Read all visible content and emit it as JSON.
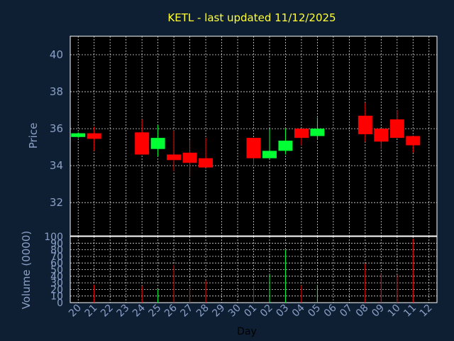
{
  "chart_data": [
    {
      "type": "candlestick",
      "title": "KETL - last updated 11/12/2025",
      "ylabel": "Price",
      "ylim": [
        30.2,
        41.0
      ],
      "yticks": [
        "32",
        "34",
        "36",
        "38",
        "40"
      ],
      "up_color": "#00ff33",
      "down_color": "#ff0000",
      "categories": [
        "20",
        "21",
        "22",
        "23",
        "24",
        "25",
        "26",
        "27",
        "28",
        "29",
        "30",
        "01",
        "02",
        "03",
        "04",
        "05",
        "06",
        "07",
        "08",
        "09",
        "10",
        "11",
        "12"
      ],
      "candles": [
        {
          "day": "20",
          "open": 35.55,
          "close": 35.75,
          "high": 35.8,
          "low": 35.5
        },
        {
          "day": "21",
          "open": 35.75,
          "close": 35.45,
          "high": 36.1,
          "low": 34.8
        },
        {
          "day": "24",
          "open": 35.8,
          "close": 34.6,
          "high": 36.5,
          "low": 34.6
        },
        {
          "day": "25",
          "open": 34.9,
          "close": 35.5,
          "high": 36.2,
          "low": 34.5
        },
        {
          "day": "26",
          "open": 34.6,
          "close": 34.3,
          "high": 35.9,
          "low": 33.7
        },
        {
          "day": "27",
          "open": 34.7,
          "close": 34.15,
          "high": 35.4,
          "low": 33.4
        },
        {
          "day": "28",
          "open": 34.4,
          "close": 33.9,
          "high": 35.5,
          "low": 33.9
        },
        {
          "day": "01",
          "open": 35.5,
          "close": 34.4,
          "high": 35.5,
          "low": 34.0
        },
        {
          "day": "02",
          "open": 34.4,
          "close": 34.8,
          "high": 36.0,
          "low": 34.4
        },
        {
          "day": "03",
          "open": 34.8,
          "close": 35.35,
          "high": 36.0,
          "low": 34.6
        },
        {
          "day": "04",
          "open": 36.0,
          "close": 35.5,
          "high": 36.0,
          "low": 35.1
        },
        {
          "day": "05",
          "open": 35.6,
          "close": 36.0,
          "high": 36.6,
          "low": 35.4
        },
        {
          "day": "08",
          "open": 36.7,
          "close": 35.7,
          "high": 37.4,
          "low": 35.3
        },
        {
          "day": "09",
          "open": 36.0,
          "close": 35.3,
          "high": 36.0,
          "low": 34.9
        },
        {
          "day": "10",
          "open": 36.5,
          "close": 35.5,
          "high": 37.0,
          "low": 35.5
        },
        {
          "day": "11",
          "open": 35.6,
          "close": 35.1,
          "high": 35.6,
          "low": 34.7
        }
      ]
    },
    {
      "type": "bar",
      "ylabel": "Volume (0000)",
      "xlabel": "Day",
      "ylim": [
        0,
        100
      ],
      "yticks": [
        "0",
        "10",
        "20",
        "30",
        "40",
        "50",
        "60",
        "70",
        "80",
        "90",
        "100"
      ],
      "volumes": [
        {
          "day": "21",
          "value": 27,
          "direction": "down"
        },
        {
          "day": "24",
          "value": 25,
          "direction": "down"
        },
        {
          "day": "25",
          "value": 20,
          "direction": "up"
        },
        {
          "day": "26",
          "value": 57,
          "direction": "down"
        },
        {
          "day": "27",
          "value": 24,
          "direction": "down"
        },
        {
          "day": "28",
          "value": 33,
          "direction": "down"
        },
        {
          "day": "01",
          "value": 27,
          "direction": "down"
        },
        {
          "day": "02",
          "value": 43,
          "direction": "up"
        },
        {
          "day": "03",
          "value": 80,
          "direction": "up"
        },
        {
          "day": "04",
          "value": 26,
          "direction": "down"
        },
        {
          "day": "05",
          "value": 27,
          "direction": "up"
        },
        {
          "day": "08",
          "value": 59,
          "direction": "down"
        },
        {
          "day": "09",
          "value": 43,
          "direction": "down"
        },
        {
          "day": "10",
          "value": 42,
          "direction": "down"
        },
        {
          "day": "11",
          "value": 97,
          "direction": "down"
        }
      ]
    }
  ]
}
